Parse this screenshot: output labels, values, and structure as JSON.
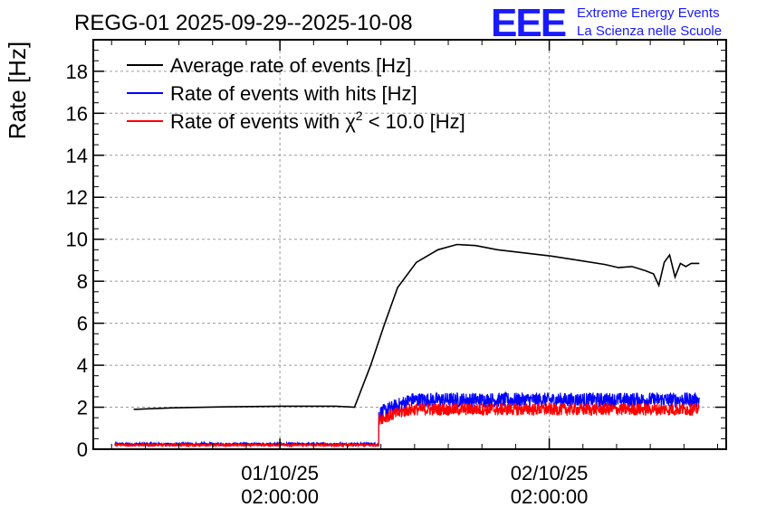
{
  "logo": {
    "mark": "EEE",
    "line1": "Extreme Energy Events",
    "line2": "La Scienza nelle Scuole",
    "color": "#1a1aff"
  },
  "chart_data": {
    "type": "line",
    "title": "REGG-01 2025-09-29--2025-10-08",
    "ylabel": "Rate [Hz]",
    "xlabel": "",
    "ylim": [
      0,
      19.5
    ],
    "yticks": [
      0,
      2,
      4,
      6,
      8,
      10,
      12,
      14,
      16,
      18
    ],
    "ytick_labels": [
      "0",
      "2",
      "4",
      "6",
      "8",
      "10",
      "12",
      "14",
      "16",
      "18"
    ],
    "xlim_days": [
      0,
      2.35
    ],
    "xticks": [
      {
        "day": 0.693,
        "label_date": "01/10/25",
        "label_time": "02:00:00"
      },
      {
        "day": 1.693,
        "label_date": "02/10/25",
        "label_time": "02:00:00"
      }
    ],
    "grid": true,
    "legend_position": "top-left",
    "legend": [
      {
        "name": "Average rate of events [Hz]",
        "color": "#000000"
      },
      {
        "name": "Rate of events with hits [Hz]",
        "color": "#0000ff"
      },
      {
        "name_prefix": "Rate of events with ",
        "name_chi": "χ",
        "name_sup": "2",
        "name_suffix": " < 10.0 [Hz]",
        "color": "#ff0000"
      }
    ],
    "series": [
      {
        "name": "Average rate of events [Hz]",
        "color": "#000000",
        "x_days": [
          0.15,
          0.3,
          0.5,
          0.7,
          0.9,
          0.97,
          1.03,
          1.08,
          1.13,
          1.2,
          1.28,
          1.35,
          1.42,
          1.5,
          1.6,
          1.7,
          1.8,
          1.9,
          1.95,
          2.0,
          2.05,
          2.08,
          2.1,
          2.12,
          2.14,
          2.16,
          2.18,
          2.2,
          2.22,
          2.25
        ],
        "values": [
          1.9,
          1.97,
          2.02,
          2.05,
          2.05,
          2.0,
          4.0,
          5.9,
          7.7,
          8.9,
          9.5,
          9.75,
          9.7,
          9.5,
          9.35,
          9.2,
          9.0,
          8.8,
          8.65,
          8.7,
          8.5,
          8.35,
          7.8,
          8.9,
          9.25,
          8.2,
          8.85,
          8.7,
          8.85,
          8.85
        ]
      },
      {
        "name": "Rate of events with hits [Hz]",
        "color": "#0000ff",
        "segments": [
          {
            "x_start": 0.08,
            "x_end": 1.06,
            "mean": 0.24,
            "noise": 0.07
          },
          {
            "x_start": 1.06,
            "x_end": 2.25,
            "mean": 2.35,
            "noise": 0.35,
            "ramp_from": 1.7,
            "ramp_days": 0.12
          }
        ]
      },
      {
        "name": "Rate of events with chi2 < 10.0 [Hz]",
        "color": "#ff0000",
        "segments": [
          {
            "x_start": 0.08,
            "x_end": 1.06,
            "mean": 0.2,
            "noise": 0.06
          },
          {
            "x_start": 1.06,
            "x_end": 2.25,
            "mean": 1.9,
            "noise": 0.3,
            "ramp_from": 1.45,
            "ramp_days": 0.12
          }
        ]
      }
    ]
  }
}
